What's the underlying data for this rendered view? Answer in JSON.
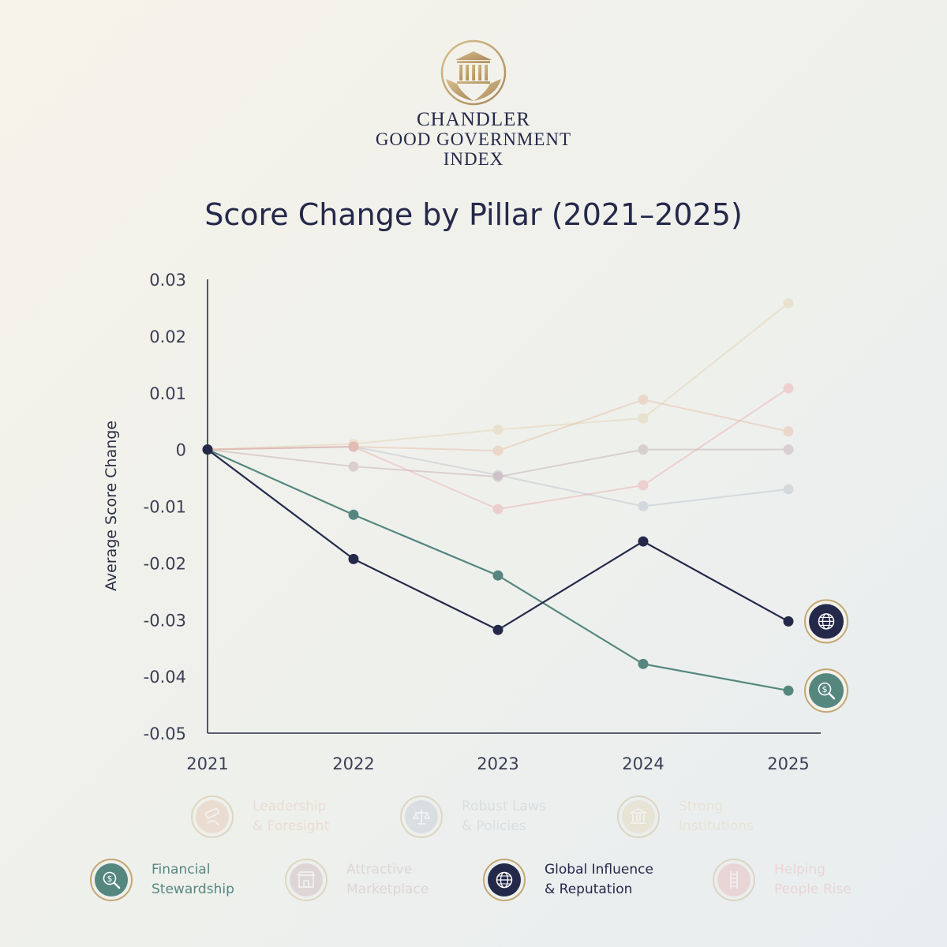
{
  "brand": {
    "name_line1": "CHANDLER",
    "name_line2": "GOOD GOVERNMENT",
    "name_line3": "INDEX",
    "logo_icon": "courthouse-in-hands-icon"
  },
  "chart_data": {
    "type": "line",
    "title": "Score Change by Pillar (2021–2025)",
    "xlabel": "",
    "ylabel": "Average Score Change",
    "x": [
      "2021",
      "2022",
      "2023",
      "2024",
      "2025"
    ],
    "ylim": [
      -0.05,
      0.03
    ],
    "yticks": [
      0.03,
      0.02,
      0.01,
      0,
      -0.01,
      -0.02,
      -0.03,
      -0.04,
      -0.05
    ],
    "ytick_labels": [
      "0.03",
      "0.02",
      "0.01",
      "0",
      "-0.01",
      "-0.02",
      "-0.03",
      "-0.04",
      "-0.05"
    ],
    "grid": false,
    "legend_position": "bottom",
    "series": [
      {
        "name": "Leadership & Foresight",
        "values": [
          0,
          0.0005,
          -0.0002,
          0.0088,
          0.0032
        ],
        "color": "#e8b9a0",
        "highlighted": false
      },
      {
        "name": "Robust Laws & Policies",
        "values": [
          0,
          0.0005,
          -0.0045,
          -0.01,
          -0.007
        ],
        "color": "#b8bfcc",
        "highlighted": false
      },
      {
        "name": "Strong Institutions",
        "values": [
          0,
          0.001,
          0.0035,
          0.0055,
          0.0258
        ],
        "color": "#e2cfa8",
        "highlighted": false
      },
      {
        "name": "Financial Stewardship",
        "values": [
          0,
          -0.0115,
          -0.0222,
          -0.0378,
          -0.0425
        ],
        "color": "#55877f",
        "highlighted": true
      },
      {
        "name": "Attractive Marketplace",
        "values": [
          0,
          -0.003,
          -0.0048,
          0,
          0
        ],
        "color": "#c3a8ad",
        "highlighted": false
      },
      {
        "name": "Global Influence & Reputation",
        "values": [
          0,
          -0.0193,
          -0.0318,
          -0.0162,
          -0.0303
        ],
        "color": "#24294a",
        "highlighted": true
      },
      {
        "name": "Helping People Rise",
        "values": [
          0,
          0.0005,
          -0.0105,
          -0.0063,
          0.0108
        ],
        "color": "#eba9a9",
        "highlighted": false
      }
    ]
  },
  "legend": [
    {
      "line1": "Leadership",
      "line2": "& Foresight",
      "icon": "telescope-hand-icon",
      "color": "#e8b9a0",
      "faded": true
    },
    {
      "line1": "Robust Laws",
      "line2": "& Policies",
      "icon": "scales-of-justice-icon",
      "color": "#b8bfcc",
      "faded": true
    },
    {
      "line1": "Strong",
      "line2": "Institutions",
      "icon": "building-columns-icon",
      "color": "#e2cfa8",
      "faded": true
    },
    {
      "line1": "Financial",
      "line2": "Stewardship",
      "icon": "dollar-magnifier-icon",
      "color": "#55877f",
      "faded": false
    },
    {
      "line1": "Attractive",
      "line2": "Marketplace",
      "icon": "storefront-icon",
      "color": "#c3a8ad",
      "faded": true
    },
    {
      "line1": "Global Influence",
      "line2": "& Reputation",
      "icon": "globe-icon",
      "color": "#24294a",
      "faded": false
    },
    {
      "line1": "Helping",
      "line2": "People Rise",
      "icon": "ladder-icon",
      "color": "#eba9a9",
      "faded": true
    }
  ]
}
